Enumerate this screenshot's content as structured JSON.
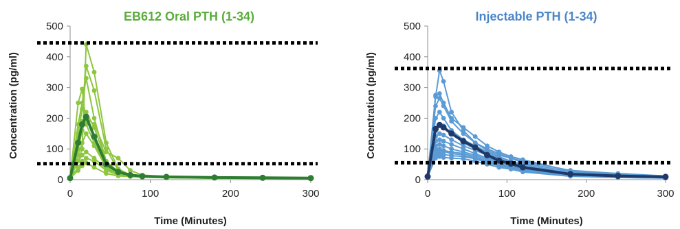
{
  "chart_data": [
    {
      "type": "line",
      "title": "EB612 Oral PTH (1-34)",
      "title_color": "#5aac3c",
      "xlabel": "Time (Minutes)",
      "ylabel": "Concentration (pg/ml)",
      "xlim": [
        0,
        300
      ],
      "ylim": [
        0,
        500
      ],
      "xticks": [
        "0",
        "100",
        "200",
        "300"
      ],
      "yticks": [
        "0",
        "100",
        "200",
        "300",
        "400",
        "500"
      ],
      "grid": false,
      "legend": "none",
      "reference_lines": [
        445,
        52
      ],
      "reference_line_style": "dotted-black",
      "individual_color": "#8dc63f",
      "mean_color": "#2e7d32",
      "series": [
        {
          "x": [
            0,
            10,
            15,
            20,
            30,
            45,
            60,
            75,
            90,
            120,
            180,
            240,
            300
          ],
          "values": [
            5,
            80,
            120,
            150,
            110,
            40,
            20,
            15,
            10,
            8,
            6,
            5,
            5
          ]
        },
        {
          "x": [
            0,
            10,
            15,
            20,
            30,
            45,
            60,
            75,
            90,
            120,
            180,
            240,
            300
          ],
          "values": [
            5,
            250,
            295,
            180,
            120,
            45,
            20,
            12,
            9,
            7,
            5,
            5,
            4
          ]
        },
        {
          "x": [
            0,
            10,
            15,
            20,
            30,
            45,
            60,
            75,
            90,
            120,
            180,
            240,
            300
          ],
          "values": [
            5,
            60,
            100,
            440,
            350,
            120,
            35,
            15,
            10,
            8,
            6,
            5,
            5
          ]
        },
        {
          "x": [
            0,
            10,
            15,
            20,
            30,
            45,
            60,
            75,
            90,
            120,
            180,
            240,
            300
          ],
          "values": [
            5,
            150,
            230,
            370,
            290,
            100,
            30,
            15,
            10,
            8,
            6,
            5,
            5
          ]
        },
        {
          "x": [
            0,
            10,
            15,
            20,
            30,
            45,
            60,
            75,
            90,
            120,
            180,
            240,
            300
          ],
          "values": [
            5,
            40,
            60,
            70,
            60,
            30,
            15,
            10,
            8,
            6,
            5,
            5,
            4
          ]
        },
        {
          "x": [
            0,
            10,
            15,
            20,
            30,
            45,
            60,
            75,
            90,
            120,
            180,
            240,
            300
          ],
          "values": [
            5,
            30,
            45,
            55,
            40,
            20,
            12,
            10,
            8,
            6,
            5,
            4,
            4
          ]
        },
        {
          "x": [
            0,
            10,
            15,
            20,
            30,
            45,
            60,
            75,
            90,
            120,
            180,
            240,
            300
          ],
          "values": [
            5,
            100,
            160,
            200,
            180,
            90,
            70,
            30,
            15,
            10,
            8,
            6,
            5
          ]
        },
        {
          "x": [
            0,
            10,
            15,
            20,
            30,
            45,
            60,
            75,
            90,
            120,
            180,
            240,
            300
          ],
          "values": [
            5,
            120,
            190,
            220,
            170,
            60,
            25,
            12,
            9,
            7,
            5,
            5,
            4
          ]
        },
        {
          "x": [
            0,
            10,
            15,
            20,
            30,
            45,
            60,
            75,
            90,
            120,
            180,
            240,
            300
          ],
          "values": [
            5,
            60,
            80,
            90,
            70,
            35,
            18,
            12,
            9,
            7,
            5,
            5,
            4
          ]
        },
        {
          "x": [
            0,
            10,
            15,
            20,
            30,
            45,
            60,
            75,
            90,
            120,
            180,
            240,
            300
          ],
          "values": [
            5,
            180,
            250,
            330,
            200,
            60,
            25,
            14,
            10,
            8,
            6,
            5,
            4
          ]
        }
      ],
      "mean_series": {
        "x": [
          0,
          10,
          15,
          20,
          30,
          45,
          60,
          75,
          90,
          120,
          180,
          240,
          300
        ],
        "values": [
          5,
          120,
          180,
          205,
          140,
          50,
          25,
          15,
          11,
          9,
          7,
          6,
          5
        ]
      }
    },
    {
      "type": "line",
      "title": "Injectable PTH (1-34)",
      "title_color": "#4a86c8",
      "xlabel": "Time (Minutes)",
      "ylabel": "Concentration (pg/ml)",
      "xlim": [
        0,
        300
      ],
      "ylim": [
        0,
        500
      ],
      "xticks": [
        "0",
        "100",
        "200",
        "300"
      ],
      "yticks": [
        "0",
        "100",
        "200",
        "300",
        "400",
        "500"
      ],
      "grid": false,
      "legend": "none",
      "reference_lines": [
        362,
        55
      ],
      "reference_line_style": "dotted-black",
      "individual_color": "#5b9bd5",
      "mean_color": "#1f3a68",
      "series": [
        {
          "x": [
            0,
            10,
            15,
            20,
            30,
            45,
            60,
            75,
            90,
            105,
            120,
            180,
            240,
            300
          ],
          "values": [
            10,
            270,
            355,
            320,
            220,
            160,
            120,
            95,
            80,
            70,
            60,
            30,
            20,
            12
          ]
        },
        {
          "x": [
            0,
            10,
            15,
            20,
            30,
            45,
            60,
            75,
            90,
            105,
            120,
            180,
            240,
            300
          ],
          "values": [
            10,
            275,
            280,
            250,
            200,
            170,
            140,
            110,
            90,
            75,
            65,
            28,
            18,
            11
          ]
        },
        {
          "x": [
            0,
            10,
            15,
            20,
            30,
            45,
            60,
            75,
            90,
            105,
            120,
            180,
            240,
            300
          ],
          "values": [
            10,
            240,
            265,
            240,
            190,
            150,
            120,
            100,
            85,
            70,
            55,
            25,
            15,
            10
          ]
        },
        {
          "x": [
            0,
            10,
            15,
            20,
            30,
            45,
            60,
            75,
            90,
            105,
            120,
            180,
            240,
            300
          ],
          "values": [
            10,
            200,
            220,
            200,
            160,
            130,
            110,
            90,
            75,
            60,
            50,
            20,
            12,
            8
          ]
        },
        {
          "x": [
            0,
            10,
            15,
            20,
            30,
            45,
            60,
            75,
            90,
            105,
            120,
            180,
            240,
            300
          ],
          "values": [
            10,
            160,
            180,
            175,
            150,
            120,
            100,
            85,
            70,
            60,
            45,
            18,
            10,
            7
          ]
        },
        {
          "x": [
            0,
            10,
            15,
            20,
            30,
            45,
            60,
            75,
            90,
            105,
            120,
            180,
            240,
            300
          ],
          "values": [
            10,
            140,
            150,
            145,
            130,
            110,
            95,
            80,
            65,
            55,
            40,
            16,
            10,
            7
          ]
        },
        {
          "x": [
            0,
            10,
            15,
            20,
            30,
            45,
            60,
            75,
            90,
            105,
            120,
            180,
            240,
            300
          ],
          "values": [
            10,
            125,
            130,
            125,
            115,
            100,
            85,
            70,
            60,
            50,
            38,
            15,
            9,
            6
          ]
        },
        {
          "x": [
            0,
            10,
            15,
            20,
            30,
            45,
            60,
            75,
            90,
            105,
            120,
            180,
            240,
            300
          ],
          "values": [
            10,
            110,
            115,
            110,
            100,
            90,
            80,
            65,
            55,
            45,
            35,
            14,
            9,
            6
          ]
        },
        {
          "x": [
            0,
            10,
            15,
            20,
            30,
            45,
            60,
            75,
            90,
            105,
            120,
            180,
            240,
            300
          ],
          "values": [
            10,
            100,
            100,
            95,
            90,
            85,
            75,
            60,
            50,
            42,
            32,
            13,
            8,
            6
          ]
        },
        {
          "x": [
            0,
            10,
            15,
            20,
            30,
            45,
            60,
            75,
            90,
            105,
            120,
            180,
            240,
            300
          ],
          "values": [
            10,
            90,
            95,
            92,
            85,
            80,
            70,
            58,
            48,
            40,
            30,
            12,
            8,
            5
          ]
        },
        {
          "x": [
            0,
            10,
            15,
            20,
            30,
            45,
            60,
            75,
            90,
            105,
            120,
            180,
            240,
            300
          ],
          "values": [
            10,
            80,
            85,
            82,
            78,
            75,
            68,
            55,
            45,
            38,
            28,
            12,
            7,
            5
          ]
        },
        {
          "x": [
            0,
            10,
            15,
            20,
            30,
            45,
            60,
            75,
            90,
            105,
            120,
            180,
            240,
            300
          ],
          "values": [
            10,
            70,
            75,
            72,
            70,
            68,
            60,
            50,
            40,
            34,
            25,
            11,
            7,
            5
          ]
        }
      ],
      "mean_series": {
        "x": [
          0,
          10,
          15,
          20,
          30,
          45,
          60,
          75,
          90,
          105,
          120,
          180,
          240,
          300
        ],
        "values": [
          10,
          165,
          178,
          170,
          150,
          125,
          105,
          80,
          62,
          52,
          40,
          18,
          12,
          9
        ]
      }
    }
  ]
}
